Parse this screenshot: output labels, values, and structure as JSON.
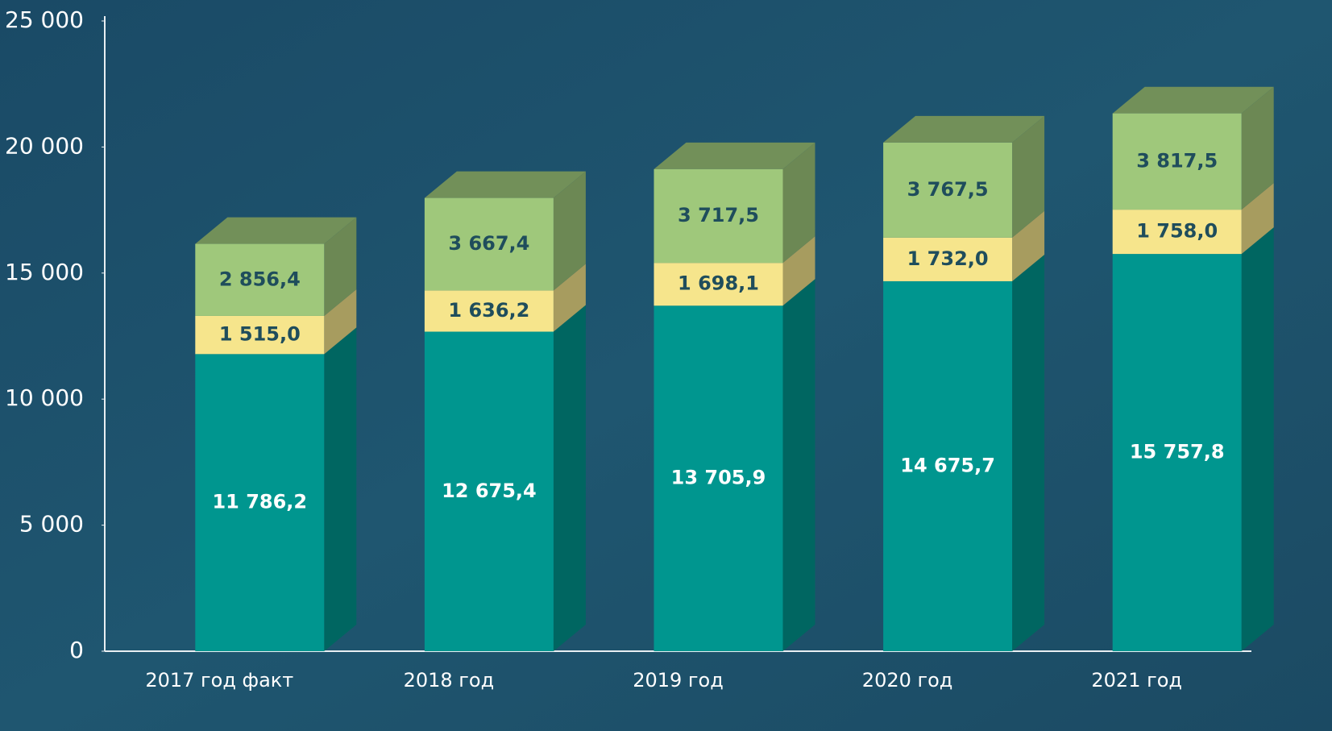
{
  "chart_data": {
    "type": "bar",
    "stacked": true,
    "categories": [
      "2017 год факт",
      "2018 год",
      "2019 год",
      "2020 год",
      "2021 год"
    ],
    "series": [
      {
        "color": "#00968f",
        "values": [
          11786.2,
          12675.4,
          13705.9,
          14675.7,
          15757.8
        ],
        "value_labels": [
          "11 786,2",
          "12 675,4",
          "13 705,9",
          "14 675,7",
          "15 757,8"
        ]
      },
      {
        "color": "#f6e58c",
        "values": [
          1515.0,
          1636.2,
          1698.1,
          1732.0,
          1758.0
        ],
        "value_labels": [
          "1 515,0",
          "1 636,2",
          "1 698,1",
          "1 732,0",
          "1 758,0"
        ]
      },
      {
        "color": "#9fc87b",
        "values": [
          2856.4,
          3667.4,
          3717.5,
          3767.5,
          3817.5
        ],
        "value_labels": [
          "2 856,4",
          "3 667,4",
          "3 717,5",
          "3 767,5",
          "3 817,5"
        ]
      }
    ],
    "ylim": [
      0,
      25000
    ],
    "yticks": [
      0,
      {
        "value": 5000,
        "label": "5 000"
      },
      {
        "value": 10000,
        "label": "10 000"
      },
      {
        "value": 15000,
        "label": "15 000"
      },
      {
        "value": 20000,
        "label": "20 000"
      },
      {
        "value": 25000,
        "label": "25 000"
      }
    ],
    "grid": false
  }
}
